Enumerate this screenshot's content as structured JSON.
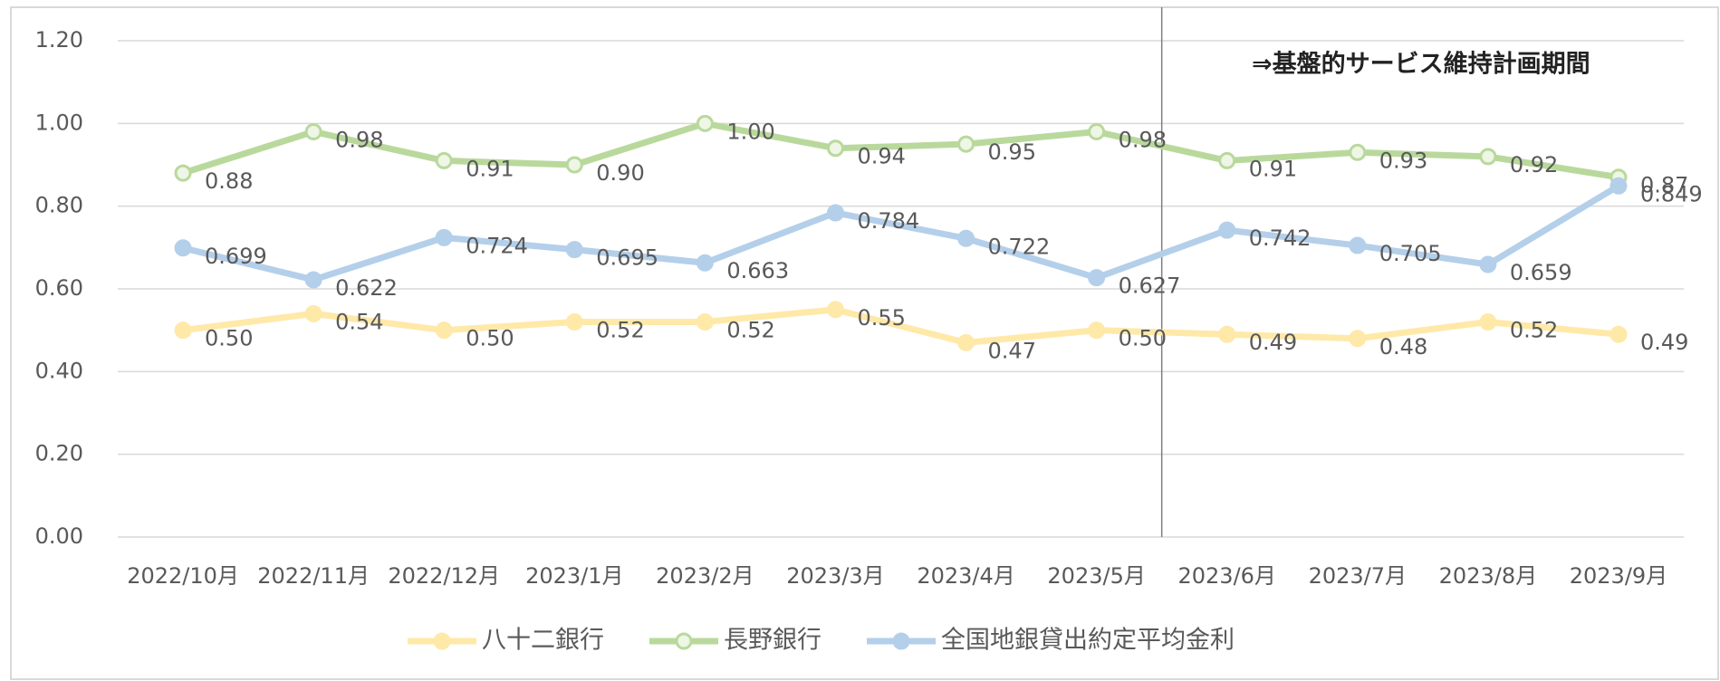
{
  "chart_data": {
    "type": "line",
    "annotation": "⇒基盤的サービス維持計画期間",
    "categories": [
      "2022/10月",
      "2022/11月",
      "2022/12月",
      "2023/1月",
      "2023/2月",
      "2023/3月",
      "2023/4月",
      "2023/5月",
      "2023/6月",
      "2023/7月",
      "2023/8月",
      "2023/9月"
    ],
    "series": [
      {
        "name": "八十二銀行",
        "color": "#ffe9a8",
        "values": [
          0.5,
          0.54,
          0.5,
          0.52,
          0.52,
          0.55,
          0.47,
          0.5,
          0.49,
          0.48,
          0.52,
          0.49
        ],
        "value_labels": [
          "0.50",
          "0.54",
          "0.50",
          "0.52",
          "0.52",
          "0.55",
          "0.47",
          "0.50",
          "0.49",
          "0.48",
          "0.52",
          "0.49"
        ]
      },
      {
        "name": "長野銀行",
        "color": "#b9d99c",
        "values": [
          0.88,
          0.98,
          0.91,
          0.9,
          1.0,
          0.94,
          0.95,
          0.98,
          0.91,
          0.93,
          0.92,
          0.87
        ],
        "value_labels": [
          "0.88",
          "0.98",
          "0.91",
          "0.90",
          "1.00",
          "0.94",
          "0.95",
          "0.98",
          "0.91",
          "0.93",
          "0.92",
          "0.87"
        ]
      },
      {
        "name": "全国地銀貸出約定平均金利",
        "color": "#b4cfea",
        "values": [
          0.699,
          0.622,
          0.724,
          0.695,
          0.663,
          0.784,
          0.722,
          0.627,
          0.742,
          0.705,
          0.659,
          0.849
        ]
      }
    ],
    "ylim": [
      0,
      1.2
    ],
    "yticks": [
      {
        "value": 0,
        "label": "0.00"
      },
      {
        "value": 0.2,
        "label": "0.20"
      },
      {
        "value": 0.4,
        "label": "0.40"
      },
      {
        "value": 0.6,
        "label": "0.60"
      },
      {
        "value": 0.8,
        "label": "0.80"
      },
      {
        "value": 1.0,
        "label": "1.00"
      },
      {
        "value": 1.2,
        "label": "1.20"
      }
    ],
    "grid": true,
    "legend": "bottom"
  }
}
